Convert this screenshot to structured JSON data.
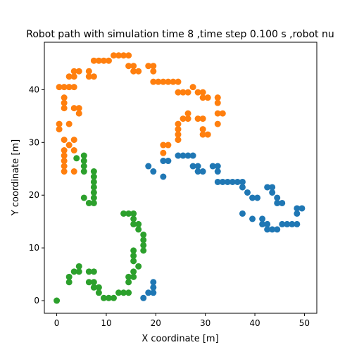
{
  "chart_data": {
    "type": "scatter",
    "title": "Robot path with simulation time 8 ,time step 0.100 s ,robot nu",
    "xlabel": "X coordinate [m]",
    "ylabel": "Y coordinate [m]",
    "xlim": [
      -2.5,
      52.5
    ],
    "ylim": [
      -2.4,
      49.0
    ],
    "xticks": [
      0,
      10,
      20,
      30,
      40,
      50
    ],
    "yticks": [
      0,
      10,
      20,
      30,
      40
    ],
    "grid": false,
    "legend": null,
    "series": [
      {
        "color": "#1f77b4",
        "points": [
          [
            17.5,
            0.5
          ],
          [
            18.5,
            1.5
          ],
          [
            19.5,
            1.5
          ],
          [
            19.5,
            2.5
          ],
          [
            19.5,
            3.5
          ],
          [
            18.5,
            25.5
          ],
          [
            19.5,
            24.5
          ],
          [
            21.5,
            23.5
          ],
          [
            21.5,
            26.5
          ],
          [
            22.5,
            26.5
          ],
          [
            24.5,
            27.5
          ],
          [
            25.5,
            27.5
          ],
          [
            26.5,
            27.5
          ],
          [
            27.5,
            27.5
          ],
          [
            27.5,
            25.5
          ],
          [
            28.5,
            25.5
          ],
          [
            28.5,
            24.5
          ],
          [
            29.5,
            24.5
          ],
          [
            31.5,
            25.5
          ],
          [
            32.5,
            25.5
          ],
          [
            32.5,
            24.5
          ],
          [
            32.5,
            22.5
          ],
          [
            33.5,
            22.5
          ],
          [
            34.5,
            22.5
          ],
          [
            35.5,
            22.5
          ],
          [
            36.5,
            22.5
          ],
          [
            37.5,
            22.5
          ],
          [
            37.5,
            21.5
          ],
          [
            38.5,
            20.5
          ],
          [
            39.5,
            19.5
          ],
          [
            40.5,
            19.5
          ],
          [
            37.5,
            16.5
          ],
          [
            39.5,
            15.5
          ],
          [
            41.5,
            15.5
          ],
          [
            41.5,
            14.5
          ],
          [
            42.5,
            14.5
          ],
          [
            42.5,
            13.5
          ],
          [
            43.5,
            13.5
          ],
          [
            44.5,
            13.5
          ],
          [
            45.5,
            14.5
          ],
          [
            46.5,
            14.5
          ],
          [
            47.5,
            14.5
          ],
          [
            48.5,
            14.5
          ],
          [
            48.5,
            16.5
          ],
          [
            48.5,
            17.5
          ],
          [
            49.5,
            17.5
          ],
          [
            44.5,
            18.5
          ],
          [
            45.5,
            18.5
          ],
          [
            44.5,
            19.5
          ],
          [
            43.5,
            20.5
          ],
          [
            43.5,
            21.5
          ],
          [
            42.5,
            21.5
          ]
        ]
      },
      {
        "color": "#ff7f0e",
        "points": [
          [
            1.5,
            24.5
          ],
          [
            1.5,
            25.5
          ],
          [
            1.5,
            26.5
          ],
          [
            1.5,
            27.5
          ],
          [
            1.5,
            28.5
          ],
          [
            1.5,
            30.5
          ],
          [
            2.5,
            29.5
          ],
          [
            3.5,
            30.5
          ],
          [
            3.5,
            28.5
          ],
          [
            3.5,
            24.5
          ],
          [
            0.5,
            32.5
          ],
          [
            0.5,
            33.5
          ],
          [
            2.5,
            33.5
          ],
          [
            3.5,
            36.5
          ],
          [
            4.5,
            36.5
          ],
          [
            4.5,
            35.5
          ],
          [
            1.5,
            36.5
          ],
          [
            1.5,
            37.5
          ],
          [
            1.5,
            38.5
          ],
          [
            0.5,
            40.5
          ],
          [
            1.5,
            40.5
          ],
          [
            2.5,
            40.5
          ],
          [
            3.5,
            40.5
          ],
          [
            2.5,
            42.5
          ],
          [
            3.5,
            42.5
          ],
          [
            3.5,
            43.5
          ],
          [
            4.5,
            43.5
          ],
          [
            6.5,
            42.5
          ],
          [
            7.5,
            42.5
          ],
          [
            6.5,
            43.5
          ],
          [
            7.5,
            45.5
          ],
          [
            8.5,
            45.5
          ],
          [
            9.5,
            45.5
          ],
          [
            10.5,
            45.5
          ],
          [
            11.5,
            46.5
          ],
          [
            12.5,
            46.5
          ],
          [
            13.5,
            46.5
          ],
          [
            14.5,
            46.5
          ],
          [
            14.5,
            44.5
          ],
          [
            15.5,
            44.5
          ],
          [
            15.5,
            43.5
          ],
          [
            16.5,
            43.5
          ],
          [
            18.5,
            44.5
          ],
          [
            19.5,
            44.5
          ],
          [
            19.5,
            43.5
          ],
          [
            19.5,
            41.5
          ],
          [
            20.5,
            41.5
          ],
          [
            21.5,
            41.5
          ],
          [
            22.5,
            41.5
          ],
          [
            23.5,
            41.5
          ],
          [
            24.5,
            41.5
          ],
          [
            24.5,
            39.5
          ],
          [
            25.5,
            39.5
          ],
          [
            26.5,
            39.5
          ],
          [
            27.5,
            40.5
          ],
          [
            28.5,
            39.5
          ],
          [
            29.5,
            39.5
          ],
          [
            29.5,
            38.5
          ],
          [
            30.5,
            38.5
          ],
          [
            32.5,
            38.5
          ],
          [
            32.5,
            37.5
          ],
          [
            32.5,
            35.5
          ],
          [
            33.5,
            35.5
          ],
          [
            32.5,
            33.5
          ],
          [
            28.5,
            34.5
          ],
          [
            29.5,
            34.5
          ],
          [
            29.5,
            32.5
          ],
          [
            29.5,
            31.5
          ],
          [
            30.5,
            31.5
          ],
          [
            26.5,
            34.5
          ],
          [
            26.5,
            35.5
          ],
          [
            25.5,
            34.5
          ],
          [
            24.5,
            33.5
          ],
          [
            24.5,
            32.5
          ],
          [
            24.5,
            31.5
          ],
          [
            24.5,
            30.5
          ],
          [
            22.5,
            29.5
          ],
          [
            21.5,
            29.5
          ],
          [
            21.5,
            28.0
          ]
        ]
      },
      {
        "color": "#2ca02c",
        "points": [
          [
            0,
            0
          ],
          [
            2.5,
            3.5
          ],
          [
            2.5,
            4.5
          ],
          [
            3.5,
            5.5
          ],
          [
            4.5,
            5.5
          ],
          [
            4.5,
            6.5
          ],
          [
            6.5,
            5.5
          ],
          [
            7.5,
            5.5
          ],
          [
            6.5,
            3.5
          ],
          [
            7.5,
            3.5
          ],
          [
            7.5,
            2.5
          ],
          [
            8.5,
            2.5
          ],
          [
            8.5,
            1.5
          ],
          [
            9.5,
            0.5
          ],
          [
            10.5,
            0.5
          ],
          [
            11.5,
            0.5
          ],
          [
            12.5,
            1.5
          ],
          [
            13.5,
            1.5
          ],
          [
            14.5,
            1.5
          ],
          [
            14.5,
            3.5
          ],
          [
            14.5,
            4.5
          ],
          [
            15.5,
            4.5
          ],
          [
            15.5,
            5.5
          ],
          [
            16.5,
            6.5
          ],
          [
            15.5,
            7.5
          ],
          [
            15.5,
            8.5
          ],
          [
            15.5,
            9.5
          ],
          [
            17.5,
            9.5
          ],
          [
            17.5,
            10.5
          ],
          [
            17.5,
            11.5
          ],
          [
            17.5,
            12.5
          ],
          [
            16.5,
            13.5
          ],
          [
            16.5,
            14.5
          ],
          [
            15.5,
            14.5
          ],
          [
            15.5,
            15.5
          ],
          [
            15.5,
            16.5
          ],
          [
            14.5,
            16.5
          ],
          [
            13.5,
            16.5
          ],
          [
            7.5,
            18.5
          ],
          [
            6.5,
            18.5
          ],
          [
            5.5,
            19.5
          ],
          [
            7.5,
            19.5
          ],
          [
            7.5,
            20.5
          ],
          [
            7.5,
            21.5
          ],
          [
            7.5,
            22.5
          ],
          [
            7.5,
            23.5
          ],
          [
            7.5,
            24.5
          ],
          [
            5.5,
            24.5
          ],
          [
            5.5,
            25.5
          ],
          [
            5.5,
            26.5
          ],
          [
            5.5,
            27.5
          ],
          [
            4.0,
            27.0
          ]
        ]
      }
    ]
  }
}
